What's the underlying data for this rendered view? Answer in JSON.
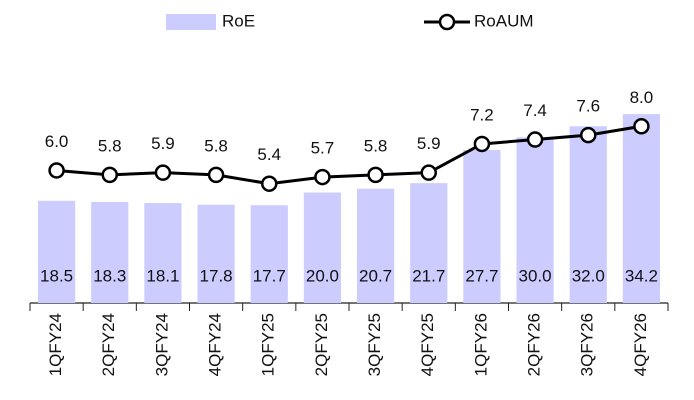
{
  "chart_data": {
    "type": "bar-line",
    "categories": [
      "1QFY24",
      "2QFY24",
      "3QFY24",
      "4QFY24",
      "1QFY25",
      "2QFY25",
      "3QFY25",
      "4QFY25",
      "1QFY26",
      "2QFY26",
      "3QFY26",
      "4QFY26"
    ],
    "series": [
      {
        "name": "RoE",
        "type": "bar",
        "color": "#ccccff",
        "values": [
          18.5,
          18.3,
          18.1,
          17.8,
          17.7,
          20.0,
          20.7,
          21.7,
          27.7,
          30.0,
          32.0,
          34.2
        ],
        "value_labels": [
          "18.5",
          "18.3",
          "18.1",
          "17.8",
          "17.7",
          "20.0",
          "20.7",
          "21.7",
          "27.7",
          "30.0",
          "32.0",
          "34.2"
        ]
      },
      {
        "name": "RoAUM",
        "type": "line",
        "axis": "y2",
        "color": "#000000",
        "values": [
          6.0,
          5.8,
          5.9,
          5.8,
          5.4,
          5.7,
          5.8,
          5.9,
          7.2,
          7.4,
          7.6,
          8.0
        ],
        "value_labels": [
          "6.0",
          "5.8",
          "5.9",
          "5.8",
          "5.4",
          "5.7",
          "5.8",
          "5.9",
          "7.2",
          "7.4",
          "7.6",
          "8.0"
        ]
      }
    ],
    "ylim": [
      0,
      44
    ],
    "y2lim": [
      0,
      11
    ],
    "legend": "top"
  }
}
